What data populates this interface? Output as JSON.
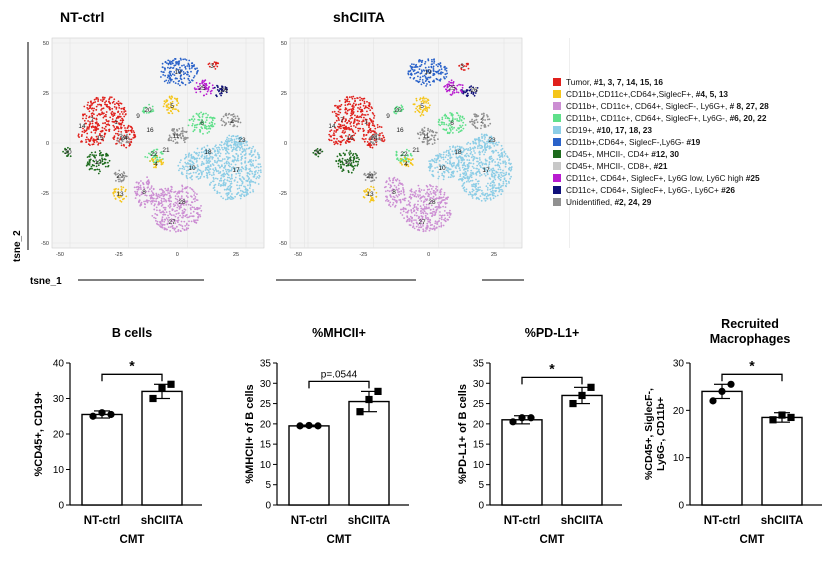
{
  "tsne": {
    "panels": [
      {
        "title": "NT-ctrl",
        "cluster_labels": [
          "1",
          "3",
          "6",
          "7",
          "20",
          "4",
          "2",
          "24",
          "10",
          "11",
          "15",
          "14",
          "19",
          "9",
          "5",
          "8",
          "13",
          "12",
          "16",
          "17",
          "18",
          "21",
          "22",
          "23",
          "25",
          "26",
          "27",
          "28",
          "29",
          "30"
        ]
      },
      {
        "title": "shCIITA",
        "cluster_labels": [
          "1",
          "3",
          "6",
          "7",
          "20",
          "4",
          "2",
          "24",
          "10",
          "11",
          "15",
          "14",
          "19",
          "9",
          "5",
          "8",
          "13",
          "12",
          "16",
          "17",
          "18",
          "21",
          "22",
          "23",
          "25",
          "26",
          "27",
          "28",
          "29",
          "30"
        ]
      }
    ],
    "x_ticks": [
      "-50",
      "-25",
      "0",
      "25"
    ],
    "y_ticks": [
      "50",
      "25",
      "0",
      "-25",
      "-50"
    ],
    "xlabel": "tsne_1",
    "ylabel": "tsne_2"
  },
  "legend": [
    {
      "color": "#e0201c",
      "text": "Tumor, ",
      "ids": "#1, 3, 7, 14, 15, 16"
    },
    {
      "color": "#f5c519",
      "text": "CD11b+,CD11c+,CD64+,SiglecF+, ",
      "ids": "#4, 5, 13"
    },
    {
      "color": "#cc8ed3",
      "text": "CD11b+, CD11c+, CD64+, SiglecF-, Ly6G+, ",
      "ids": "# 8, 27, 28"
    },
    {
      "color": "#5fe08a",
      "text": "CD11b+, CD11c+, CD64+, SiglecF+, Ly6G-, ",
      "ids": "#6, 20, 22"
    },
    {
      "color": "#8ccde6",
      "text": "CD19+, ",
      "ids": "#10, 17, 18, 23"
    },
    {
      "color": "#2a62c9",
      "text": "CD11b+,CD64+, SiglecF-,Ly6G- ",
      "ids": "#19"
    },
    {
      "color": "#1d6b1d",
      "text": "CD45+, MHCII-, CD4+ ",
      "ids": "#12, 30"
    },
    {
      "color": "#c8c8c8",
      "text": "CD45+, MHCII-, CD8+, ",
      "ids": "#21"
    },
    {
      "color": "#b81bd0",
      "text": "CD11c+, CD64+, SiglecF+, Ly6G low, Ly6C high ",
      "ids": "#25"
    },
    {
      "color": "#10107a",
      "text": " CD11c+, CD64+, SiglecF+, Ly6G-, Ly6C+ ",
      "ids": "#26"
    },
    {
      "color": "#909090",
      "text": "Unidentified, ",
      "ids": "#2, 24, 29"
    }
  ],
  "chart_data": [
    {
      "type": "bar",
      "title": "B cells",
      "categories": [
        "NT-ctrl",
        "shCIITA"
      ],
      "values": [
        25.5,
        32
      ],
      "errors": [
        1,
        2
      ],
      "points": [
        [
          25,
          26,
          25.5
        ],
        [
          30,
          33,
          34
        ]
      ],
      "ylabel": "%CD45+, CD19+",
      "xlabel": "CMT",
      "ylim": [
        0,
        40
      ],
      "yticks": [
        0,
        10,
        20,
        30,
        40
      ],
      "significance": "*"
    },
    {
      "type": "bar",
      "title": "%MHCII+",
      "categories": [
        "NT-ctrl",
        "shCIITA"
      ],
      "values": [
        19.5,
        25.5
      ],
      "errors": [
        0.2,
        2.5
      ],
      "points": [
        [
          19.5,
          19.6,
          19.5
        ],
        [
          23,
          26,
          28
        ]
      ],
      "ylabel": "%MHCII+ of B cells",
      "xlabel": "CMT",
      "ylim": [
        0,
        35
      ],
      "yticks": [
        0,
        5,
        10,
        15,
        20,
        25,
        30,
        35
      ],
      "significance": "p=.0544"
    },
    {
      "type": "bar",
      "title": "%PD-L1+",
      "categories": [
        "NT-ctrl",
        "shCIITA"
      ],
      "values": [
        21,
        27
      ],
      "errors": [
        1,
        2
      ],
      "points": [
        [
          20.5,
          21.5,
          21.5
        ],
        [
          25,
          27,
          29
        ]
      ],
      "ylabel": "%PD-L1+ of B cells",
      "xlabel": "CMT",
      "ylim": [
        0,
        35
      ],
      "yticks": [
        0,
        5,
        10,
        15,
        20,
        25,
        30,
        35
      ],
      "significance": "*"
    },
    {
      "type": "bar",
      "title": "Recruited Macrophages",
      "categories": [
        "NT-ctrl",
        "shCIITA"
      ],
      "values": [
        24,
        18.5
      ],
      "errors": [
        1.5,
        1
      ],
      "points": [
        [
          22,
          24,
          25.5
        ],
        [
          18,
          19,
          18.5
        ]
      ],
      "ylabel": "%CD45+, SiglecF-, Ly6G-, CD11b+",
      "xlabel": "CMT",
      "ylim": [
        0,
        30
      ],
      "yticks": [
        0,
        10,
        20,
        30
      ],
      "significance": "*"
    }
  ]
}
